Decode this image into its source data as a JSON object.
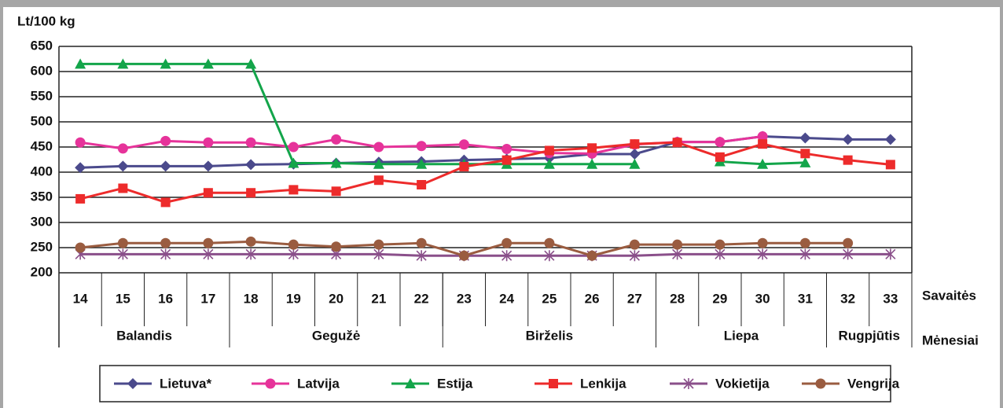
{
  "chart_data": {
    "type": "line",
    "y_label": "Lt/100 kg",
    "x_label": "Savaitės",
    "month_label": "Mėnesiai",
    "categories": [
      "14",
      "15",
      "16",
      "17",
      "18",
      "19",
      "20",
      "21",
      "22",
      "23",
      "24",
      "25",
      "26",
      "27",
      "28",
      "29",
      "30",
      "31",
      "32",
      "33"
    ],
    "months": [
      {
        "name": "Balandis",
        "first": "14",
        "last": "17"
      },
      {
        "name": "Gegužė",
        "first": "18",
        "last": "22"
      },
      {
        "name": "Birželis",
        "first": "23",
        "last": "27"
      },
      {
        "name": "Liepa",
        "first": "28",
        "last": "31"
      },
      {
        "name": "Rugpjūtis",
        "first": "32",
        "last": "33"
      }
    ],
    "ylim": [
      200,
      650
    ],
    "yticks": [
      200,
      250,
      300,
      350,
      400,
      450,
      500,
      550,
      600,
      650
    ],
    "grid": true,
    "series": [
      {
        "name": "Lietuva*",
        "color": "#4b4a8c",
        "marker": "diamond",
        "values": [
          409,
          412,
          412,
          412,
          415,
          416,
          418,
          420,
          421,
          424,
          426,
          428,
          436,
          436,
          460,
          460,
          471,
          468,
          465,
          465
        ]
      },
      {
        "name": "Latvija",
        "color": "#e6339a",
        "marker": "circle",
        "values": [
          459,
          447,
          462,
          459,
          459,
          450,
          465,
          450,
          452,
          455,
          446,
          438,
          437,
          455,
          460,
          460,
          471,
          null,
          null,
          null
        ]
      },
      {
        "name": "Estija",
        "color": "#13a54a",
        "marker": "triangle",
        "values": [
          615,
          615,
          615,
          615,
          615,
          418,
          418,
          416,
          416,
          416,
          416,
          416,
          416,
          416,
          null,
          421,
          416,
          419,
          null,
          null
        ]
      },
      {
        "name": "Lenkija",
        "color": "#ed2b2b",
        "marker": "square",
        "values": [
          347,
          368,
          340,
          359,
          359,
          365,
          362,
          384,
          375,
          411,
          424,
          443,
          448,
          456,
          459,
          430,
          456,
          437,
          424,
          415
        ]
      },
      {
        "name": "Vokietija",
        "color": "#8a4f8a",
        "marker": "star",
        "values": [
          237,
          237,
          237,
          237,
          237,
          237,
          237,
          237,
          234,
          234,
          234,
          234,
          234,
          234,
          237,
          237,
          237,
          237,
          237,
          237
        ]
      },
      {
        "name": "Vengrija",
        "color": "#9a5c40",
        "marker": "circle",
        "values": [
          250,
          259,
          259,
          259,
          262,
          256,
          252,
          256,
          259,
          234,
          259,
          259,
          234,
          256,
          256,
          256,
          259,
          259,
          259,
          null
        ]
      }
    ]
  }
}
